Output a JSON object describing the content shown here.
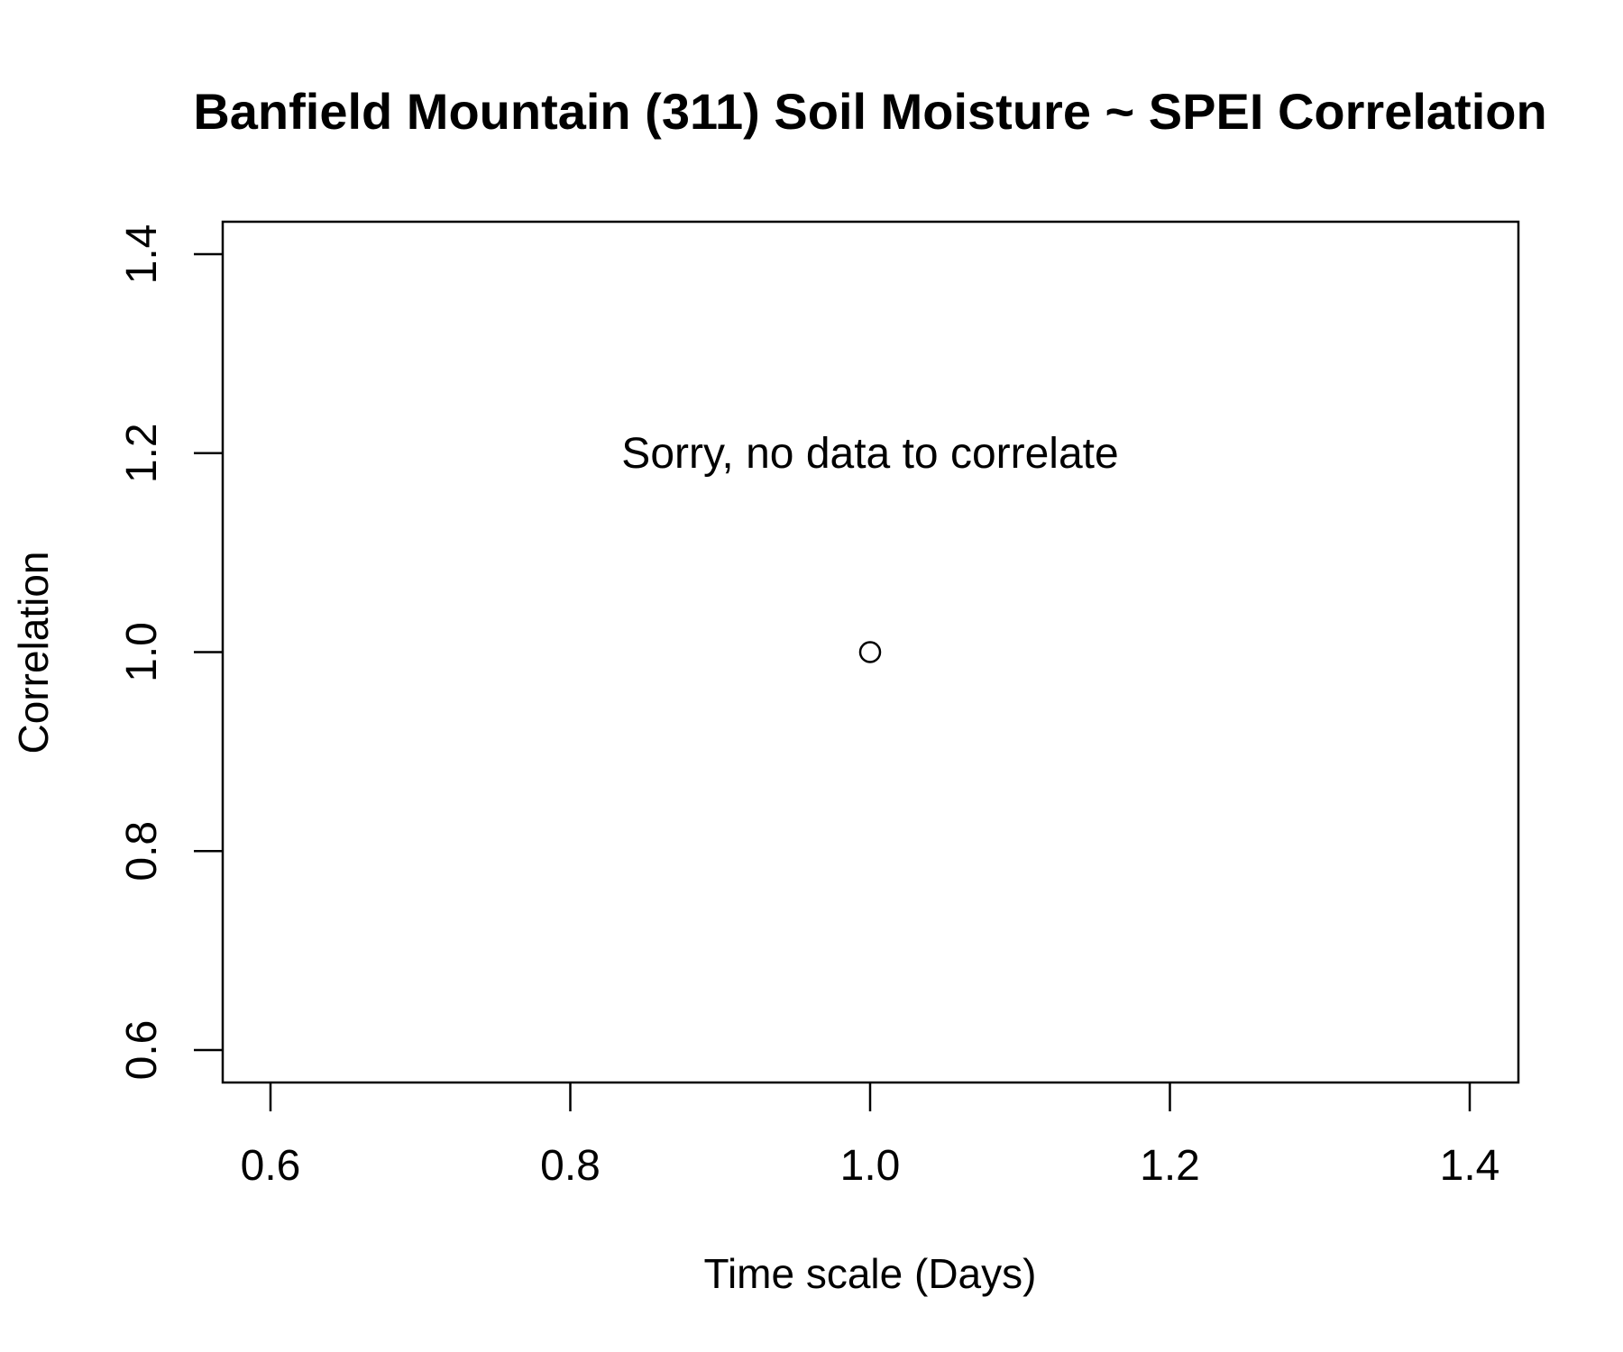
{
  "chart_data": {
    "type": "scatter",
    "title": "Banfield Mountain (311) Soil Moisture ~ SPEI Correlation",
    "xlabel": "Time scale (Days)",
    "ylabel": "Correlation",
    "xlim": [
      0.6,
      1.4
    ],
    "ylim": [
      0.6,
      1.4
    ],
    "xticks": [
      0.6,
      0.8,
      1.0,
      1.2,
      1.4
    ],
    "xtick_labels": [
      "0.6",
      "0.8",
      "1.0",
      "1.2",
      "1.4"
    ],
    "yticks": [
      0.6,
      0.8,
      1.0,
      1.2,
      1.4
    ],
    "ytick_labels": [
      "0.6",
      "0.8",
      "1.0",
      "1.2",
      "1.4"
    ],
    "series": [
      {
        "name": "correlation",
        "points": [
          {
            "x": 1.0,
            "y": 1.0
          }
        ]
      }
    ],
    "annotation": {
      "text": "Sorry, no data to correlate",
      "x": 1.0,
      "y": 1.2
    },
    "grid": false,
    "marker": "open-circle"
  }
}
